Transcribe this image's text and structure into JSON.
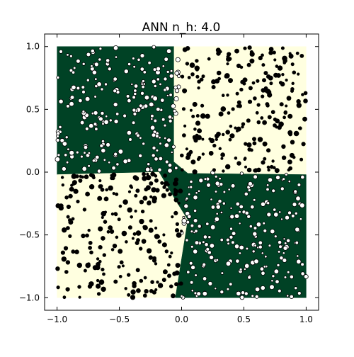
{
  "chart_data": {
    "type": "scatter",
    "title": "ANN n_h: 4.0",
    "xlabel": "",
    "ylabel": "",
    "xlim": [
      -1.1,
      1.1
    ],
    "ylim": [
      -1.1,
      1.1
    ],
    "x_ticks": [
      "−1.0",
      "−0.5",
      "0.0",
      "0.5",
      "1.0"
    ],
    "x_tick_values": [
      -1.0,
      -0.5,
      0.0,
      0.5,
      1.0
    ],
    "y_ticks": [
      "−1.0",
      "−0.5",
      "0.0",
      "0.5",
      "1.0"
    ],
    "y_tick_values": [
      -1.0,
      -0.5,
      0.0,
      0.5,
      1.0
    ],
    "grid": false,
    "legend": "none",
    "colors": {
      "class_pos_region": "#004225",
      "class_neg_region": "#ffffe0",
      "class_pos_marker": "#ffffff",
      "class_neg_marker": "#000000",
      "marker_edge": "#000000",
      "axes": "#000000"
    },
    "decision_regions": [
      {
        "class": "pos",
        "polygon": [
          [
            -1.0,
            1.0
          ],
          [
            -0.06,
            1.0
          ],
          [
            -0.06,
            0.08
          ],
          [
            -0.18,
            0.0
          ],
          [
            -1.0,
            -0.02
          ]
        ]
      },
      {
        "class": "neg",
        "polygon": [
          [
            -0.06,
            1.0
          ],
          [
            1.0,
            1.0
          ],
          [
            1.0,
            -0.02
          ],
          [
            0.05,
            -0.01
          ],
          [
            -0.06,
            0.08
          ]
        ]
      },
      {
        "class": "neg",
        "polygon": [
          [
            -1.0,
            -0.02
          ],
          [
            -0.18,
            0.0
          ],
          [
            -0.05,
            -0.22
          ],
          [
            0.05,
            -0.38
          ],
          [
            -0.05,
            -1.0
          ],
          [
            -1.0,
            -1.0
          ]
        ]
      },
      {
        "class": "pos",
        "polygon": [
          [
            0.05,
            -0.01
          ],
          [
            1.0,
            -0.02
          ],
          [
            1.0,
            -1.0
          ],
          [
            -0.05,
            -1.0
          ],
          [
            0.05,
            -0.38
          ],
          [
            -0.05,
            -0.22
          ],
          [
            -0.18,
            0.0
          ],
          [
            -0.06,
            0.08
          ]
        ]
      }
    ],
    "series": [
      {
        "class": "pos",
        "region": [
          [
            -1.0,
            -0.02
          ],
          [
            0.0,
            1.0
          ]
        ],
        "count": 230
      },
      {
        "class": "pos",
        "region": [
          [
            0.0,
            1.0
          ],
          [
            -1.0,
            0.0
          ]
        ],
        "count": 230
      },
      {
        "class": "neg",
        "region": [
          [
            0.0,
            1.0
          ],
          [
            0.0,
            1.0
          ]
        ],
        "count": 230
      },
      {
        "class": "neg",
        "region": [
          [
            -1.0,
            0.0
          ],
          [
            -1.0,
            0.0
          ]
        ],
        "count": 230
      }
    ]
  }
}
